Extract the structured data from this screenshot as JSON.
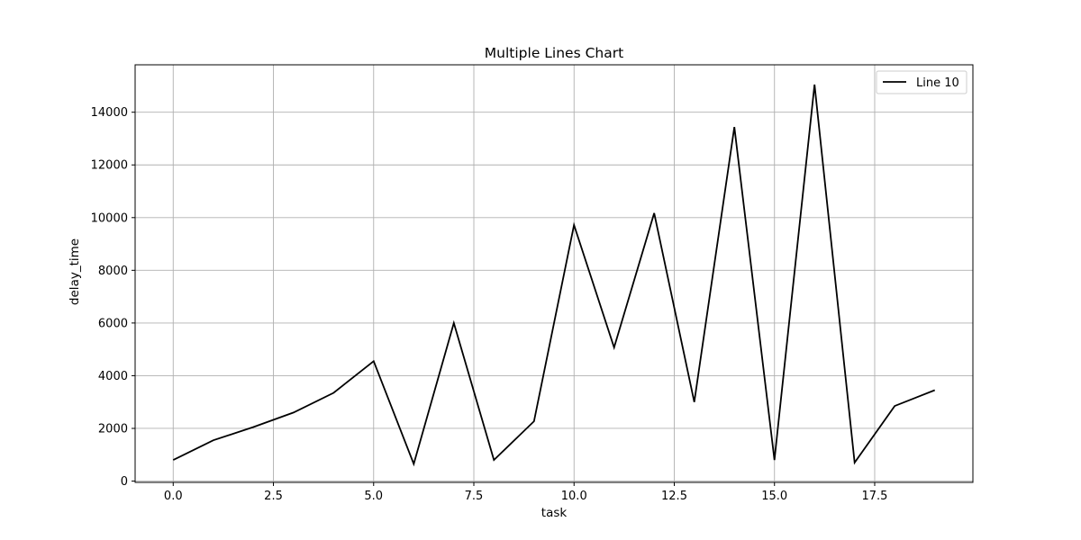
{
  "chart_data": {
    "type": "line",
    "title": "Multiple Lines Chart",
    "xlabel": "task",
    "ylabel": "delay_time",
    "xlim": [
      -0.95,
      19.95
    ],
    "ylim": [
      -50,
      15800
    ],
    "xticks": [
      0.0,
      2.5,
      5.0,
      7.5,
      10.0,
      12.5,
      15.0,
      17.5
    ],
    "xtick_labels": [
      "0.0",
      "2.5",
      "5.0",
      "7.5",
      "10.0",
      "12.5",
      "15.0",
      "17.5"
    ],
    "yticks": [
      0,
      2000,
      4000,
      6000,
      8000,
      10000,
      12000,
      14000
    ],
    "ytick_labels": [
      "0",
      "2000",
      "4000",
      "6000",
      "8000",
      "10000",
      "12000",
      "14000"
    ],
    "grid": true,
    "legend_position": "top-right",
    "series": [
      {
        "name": "Line 10",
        "color": "#000000",
        "x": [
          0,
          1,
          2,
          3,
          4,
          5,
          6,
          7,
          8,
          9,
          10,
          11,
          12,
          13,
          14,
          15,
          16,
          17,
          18,
          19
        ],
        "values": [
          800,
          1550,
          2050,
          2600,
          3350,
          4550,
          650,
          6000,
          800,
          2270,
          9720,
          5070,
          10170,
          3000,
          13440,
          800,
          15050,
          700,
          2850,
          3450
        ]
      }
    ]
  }
}
